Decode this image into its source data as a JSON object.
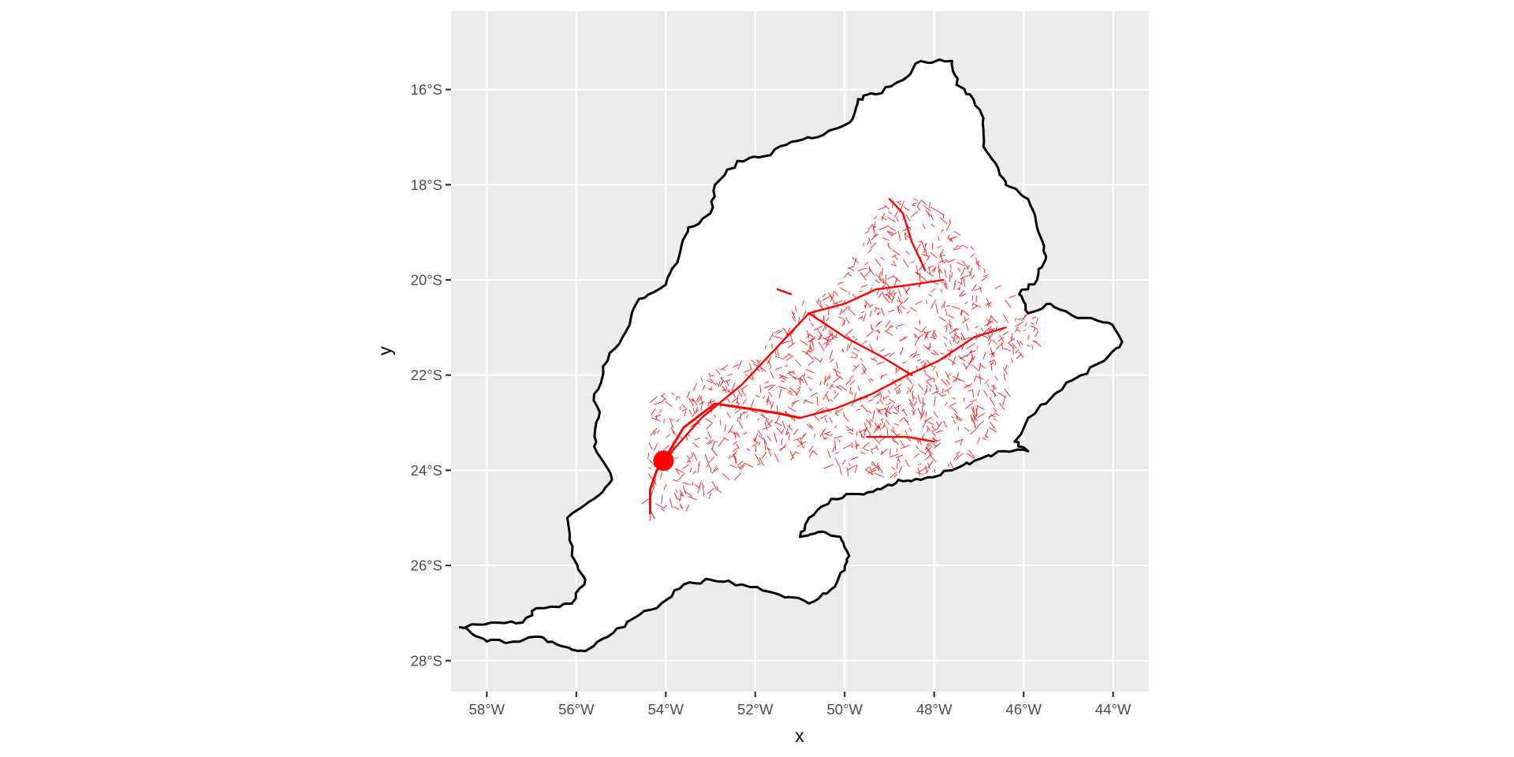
{
  "map": {
    "panel_background": "#ebebeb",
    "grid_color": "#ffffff",
    "basin_fill": "#ffffff",
    "basin_outline": "#000000",
    "river_color": "#ff0000",
    "outlet_color": "#ff0000",
    "x_axis_title": "x",
    "y_axis_title": "y",
    "x_ticks": [
      {
        "lon": -58,
        "label": "58°W"
      },
      {
        "lon": -56,
        "label": "56°W"
      },
      {
        "lon": -54,
        "label": "54°W"
      },
      {
        "lon": -52,
        "label": "52°W"
      },
      {
        "lon": -50,
        "label": "50°W"
      },
      {
        "lon": -48,
        "label": "48°W"
      },
      {
        "lon": -46,
        "label": "46°W"
      },
      {
        "lon": -44,
        "label": "44°W"
      }
    ],
    "y_ticks": [
      {
        "lat": -16,
        "label": "16°S"
      },
      {
        "lat": -18,
        "label": "18°S"
      },
      {
        "lat": -20,
        "label": "20°S"
      },
      {
        "lat": -22,
        "label": "22°S"
      },
      {
        "lat": -24,
        "label": "24°S"
      },
      {
        "lat": -26,
        "label": "26°S"
      },
      {
        "lat": -28,
        "label": "28°S"
      }
    ],
    "lon_range": [
      -58.8,
      -43.2
    ],
    "lat_range": [
      -28.65,
      -14.35
    ],
    "outlet_point": {
      "lon": -54.05,
      "lat": -23.8
    },
    "basin_outline_lonlat": [
      [
        -58.6,
        -27.3
      ],
      [
        -57.9,
        -27.2
      ],
      [
        -57.2,
        -27.2
      ],
      [
        -56.9,
        -26.9
      ],
      [
        -56.1,
        -26.8
      ],
      [
        -55.8,
        -26.3
      ],
      [
        -56.1,
        -25.8
      ],
      [
        -56.2,
        -25.0
      ],
      [
        -55.6,
        -24.6
      ],
      [
        -55.2,
        -24.2
      ],
      [
        -55.6,
        -23.5
      ],
      [
        -55.5,
        -22.9
      ],
      [
        -55.6,
        -22.4
      ],
      [
        -55.3,
        -21.7
      ],
      [
        -54.9,
        -21.1
      ],
      [
        -54.6,
        -20.4
      ],
      [
        -54.0,
        -20.1
      ],
      [
        -53.7,
        -19.5
      ],
      [
        -53.5,
        -18.9
      ],
      [
        -53.0,
        -18.6
      ],
      [
        -52.9,
        -18.0
      ],
      [
        -52.4,
        -17.5
      ],
      [
        -51.8,
        -17.4
      ],
      [
        -51.2,
        -17.1
      ],
      [
        -50.6,
        -17.0
      ],
      [
        -49.9,
        -16.7
      ],
      [
        -49.7,
        -16.2
      ],
      [
        -49.3,
        -16.1
      ],
      [
        -48.7,
        -15.8
      ],
      [
        -48.3,
        -15.4
      ],
      [
        -47.6,
        -15.4
      ],
      [
        -47.5,
        -15.9
      ],
      [
        -47.2,
        -16.1
      ],
      [
        -46.9,
        -16.6
      ],
      [
        -46.9,
        -17.2
      ],
      [
        -46.6,
        -17.6
      ],
      [
        -46.4,
        -18.0
      ],
      [
        -45.9,
        -18.3
      ],
      [
        -45.7,
        -18.9
      ],
      [
        -45.5,
        -19.5
      ],
      [
        -45.7,
        -20.0
      ],
      [
        -46.1,
        -20.3
      ],
      [
        -45.9,
        -20.7
      ],
      [
        -45.4,
        -20.5
      ],
      [
        -44.8,
        -20.8
      ],
      [
        -44.1,
        -20.9
      ],
      [
        -43.8,
        -21.3
      ],
      [
        -44.2,
        -21.7
      ],
      [
        -44.9,
        -22.1
      ],
      [
        -45.5,
        -22.6
      ],
      [
        -45.9,
        -22.9
      ],
      [
        -46.2,
        -23.4
      ],
      [
        -45.9,
        -23.6
      ],
      [
        -46.4,
        -23.6
      ],
      [
        -47.1,
        -23.8
      ],
      [
        -47.6,
        -24.0
      ],
      [
        -48.3,
        -24.2
      ],
      [
        -48.8,
        -24.2
      ],
      [
        -49.2,
        -24.4
      ],
      [
        -49.7,
        -24.5
      ],
      [
        -50.3,
        -24.6
      ],
      [
        -50.8,
        -25.0
      ],
      [
        -51.0,
        -25.4
      ],
      [
        -50.6,
        -25.3
      ],
      [
        -50.1,
        -25.4
      ],
      [
        -49.9,
        -25.8
      ],
      [
        -50.0,
        -26.1
      ],
      [
        -50.3,
        -26.5
      ],
      [
        -50.8,
        -26.8
      ],
      [
        -51.5,
        -26.6
      ],
      [
        -52.3,
        -26.4
      ],
      [
        -53.0,
        -26.3
      ],
      [
        -53.6,
        -26.4
      ],
      [
        -54.1,
        -26.8
      ],
      [
        -54.7,
        -27.1
      ],
      [
        -55.3,
        -27.5
      ],
      [
        -55.8,
        -27.8
      ],
      [
        -56.3,
        -27.7
      ],
      [
        -56.8,
        -27.5
      ],
      [
        -57.4,
        -27.6
      ],
      [
        -58.0,
        -27.6
      ],
      [
        -58.6,
        -27.3
      ]
    ],
    "main_rivers_lonlat": [
      [
        [
          -54.35,
          -24.9
        ],
        [
          -54.35,
          -24.4
        ],
        [
          -54.2,
          -24.0
        ],
        [
          -54.05,
          -23.8
        ]
      ],
      [
        [
          -54.05,
          -23.8
        ],
        [
          -53.6,
          -23.1
        ],
        [
          -52.9,
          -22.6
        ],
        [
          -52.2,
          -22.7
        ],
        [
          -51.5,
          -22.8
        ],
        [
          -51.0,
          -22.9
        ]
      ],
      [
        [
          -54.05,
          -23.8
        ],
        [
          -53.2,
          -22.9
        ],
        [
          -52.3,
          -22.2
        ],
        [
          -51.5,
          -21.4
        ],
        [
          -50.8,
          -20.7
        ],
        [
          -50.0,
          -20.5
        ],
        [
          -49.3,
          -20.2
        ],
        [
          -48.5,
          -20.1
        ],
        [
          -47.8,
          -20.0
        ]
      ],
      [
        [
          -51.0,
          -22.9
        ],
        [
          -50.2,
          -22.7
        ],
        [
          -49.4,
          -22.4
        ],
        [
          -48.6,
          -22.0
        ],
        [
          -47.9,
          -21.7
        ],
        [
          -47.1,
          -21.2
        ],
        [
          -46.4,
          -21.0
        ]
      ],
      [
        [
          -50.8,
          -20.7
        ],
        [
          -50.0,
          -21.2
        ],
        [
          -49.2,
          -21.6
        ],
        [
          -48.5,
          -22.0
        ]
      ],
      [
        [
          -51.2,
          -20.3
        ],
        [
          -51.5,
          -20.2
        ]
      ],
      [
        [
          -49.5,
          -23.3
        ],
        [
          -48.6,
          -23.3
        ],
        [
          -48.0,
          -23.4
        ]
      ],
      [
        [
          -49.0,
          -18.3
        ],
        [
          -48.7,
          -18.6
        ],
        [
          -48.5,
          -19.2
        ],
        [
          -48.2,
          -19.8
        ]
      ]
    ]
  }
}
